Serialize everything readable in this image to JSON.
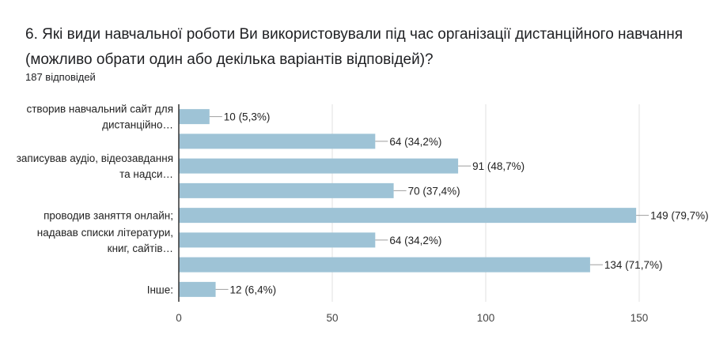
{
  "question": {
    "title": "6. Які види навчальної роботи Ви використовували під час організації дистанційного навчання (можливо обрати один або декілька варіантів відповідей)?",
    "response_count": "187 відповідей"
  },
  "colors": {
    "bar": "#9ec3d6",
    "leader": "#9e9e9e",
    "grid": "#e0e0e0",
    "axis": "#333333"
  },
  "chart_data": {
    "type": "bar",
    "orientation": "horizontal",
    "categories": [
      [
        "створив навчальний сайт для",
        "дистанційно…"
      ],
      [],
      [
        "записував аудіо, відеозавдання",
        "та надси…"
      ],
      [],
      [
        "проводив заняття онлайн;"
      ],
      [
        "надавав списки літератури,",
        "книг, сайтів…"
      ],
      [],
      [
        "Інше:"
      ]
    ],
    "values": [
      10,
      64,
      91,
      70,
      149,
      64,
      134,
      12
    ],
    "value_labels": [
      "10 (5,3%)",
      "64 (34,2%)",
      "91 (48,7%)",
      "70 (37,4%)",
      "149 (79,7%)",
      "64 (34,2%)",
      "134 (71,7%)",
      "12 (6,4%)"
    ],
    "xticks": [
      0,
      50,
      100,
      150
    ],
    "xlim": [
      0,
      150
    ],
    "grid": true
  }
}
